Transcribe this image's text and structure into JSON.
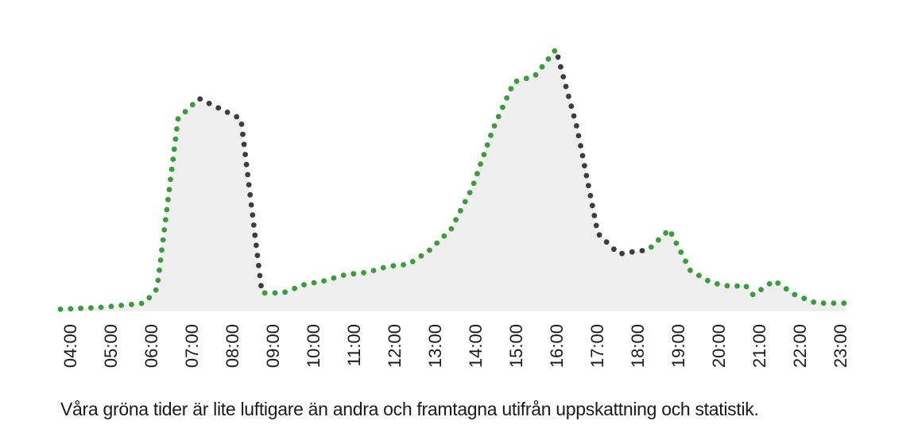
{
  "caption": "Våra gröna tider är lite luftigare än andra och framtagna utifrån uppskattning och statistik.",
  "chart_data": {
    "type": "area",
    "categories": [
      "04:00",
      "05:00",
      "06:00",
      "07:00",
      "08:00",
      "09:00",
      "10:00",
      "11:00",
      "12:00",
      "13:00",
      "14:00",
      "15:00",
      "16:00",
      "17:00",
      "18:00",
      "19:00",
      "20:00",
      "21:00",
      "22:00",
      "23:00"
    ],
    "x": [
      4.0,
      4.5,
      5.0,
      5.5,
      6.0,
      6.3,
      6.8,
      7.3,
      7.8,
      8.3,
      8.8,
      9.3,
      9.8,
      10.3,
      10.8,
      11.3,
      11.8,
      12.3,
      12.8,
      13.3,
      13.8,
      14.3,
      14.8,
      15.3,
      15.8,
      16.3,
      16.8,
      17.3,
      17.6,
      18.0,
      18.5,
      19.0,
      19.5,
      20.0,
      20.3,
      20.5,
      21.0,
      21.5,
      22.0,
      22.3,
      22.7
    ],
    "y": [
      1,
      1.5,
      2,
      3,
      4,
      11,
      94,
      104,
      99,
      94,
      9,
      9,
      13,
      15,
      18,
      19,
      22,
      23,
      30,
      40,
      60,
      89,
      112,
      115,
      128,
      90,
      38,
      28,
      29,
      30,
      40,
      20,
      14,
      12,
      13,
      8,
      15,
      8,
      4,
      4,
      4
    ],
    "highlight_ranges": [
      [
        7.3,
        8.8
      ],
      [
        15.8,
        17.9
      ]
    ],
    "ylim": [
      0,
      135
    ],
    "xlim": [
      4.0,
      22.7
    ],
    "grid": false,
    "colors": {
      "normal": "#3a9d3a",
      "busy": "#3d3d3d",
      "fill": "#efefef",
      "text": "#1a1a1a"
    }
  }
}
